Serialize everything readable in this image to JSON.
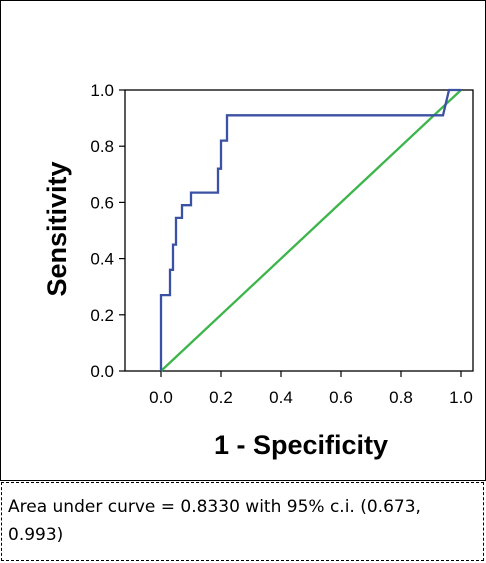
{
  "chart_data": {
    "type": "line",
    "title": "",
    "xlabel": "1 - Specificity",
    "ylabel": "Sensitivity",
    "xlim": [
      -0.12,
      1.04
    ],
    "ylim": [
      0,
      1.0
    ],
    "xticks": [
      "0.0",
      "0.2",
      "0.4",
      "0.6",
      "0.8",
      "1.0"
    ],
    "yticks": [
      "0.0",
      "0.2",
      "0.4",
      "0.6",
      "0.8",
      "1.0"
    ],
    "grid": false,
    "legend": "none",
    "series": [
      {
        "color": "#3b51a3",
        "x": [
          0.0,
          0.0,
          0.03,
          0.03,
          0.04,
          0.04,
          0.05,
          0.05,
          0.07,
          0.07,
          0.1,
          0.1,
          0.19,
          0.19,
          0.2,
          0.2,
          0.22,
          0.22,
          0.94,
          0.96,
          1.0
        ],
        "y": [
          0.0,
          0.27,
          0.27,
          0.36,
          0.36,
          0.45,
          0.45,
          0.545,
          0.545,
          0.59,
          0.59,
          0.635,
          0.635,
          0.72,
          0.72,
          0.82,
          0.82,
          0.91,
          0.91,
          1.0,
          1.0
        ]
      },
      {
        "color": "#3cb54a",
        "x": [
          0.0,
          1.0
        ],
        "y": [
          0.0,
          1.0
        ]
      }
    ]
  },
  "caption": {
    "text": "Area under curve = 0.8330 with 95% c.i. (0.673, 0.993)"
  }
}
